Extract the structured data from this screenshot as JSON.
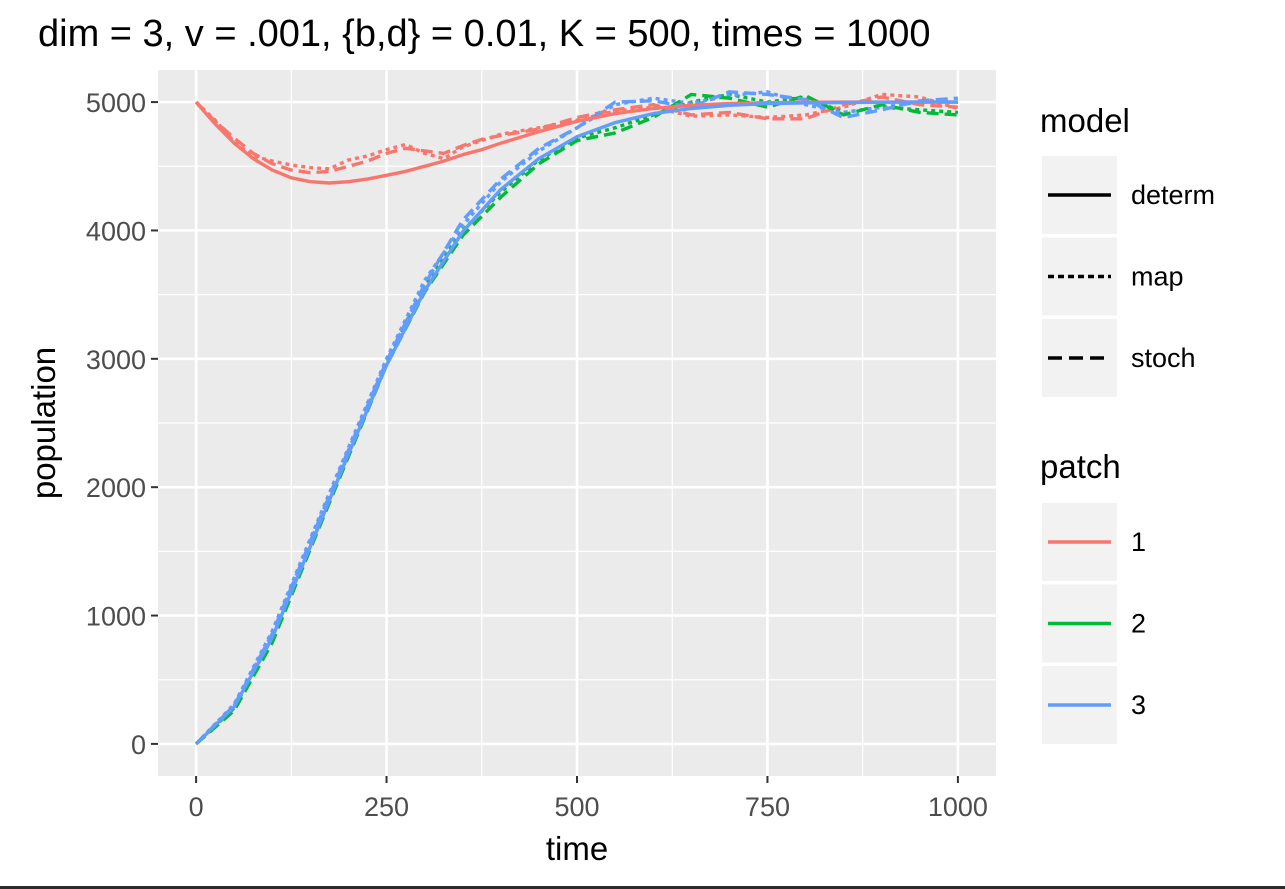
{
  "chart_data": {
    "type": "line",
    "title": "dim = 3, v = .001, {b,d} = 0.01, K = 500, times = 1000",
    "xlabel": "time",
    "ylabel": "population",
    "xlim": [
      -50,
      1050
    ],
    "ylim": [
      -250,
      5250
    ],
    "xticks": [
      0,
      250,
      500,
      750,
      1000
    ],
    "yticks": [
      0,
      1000,
      2000,
      3000,
      4000,
      5000
    ],
    "grid": true,
    "legend_position": "right",
    "legends": [
      {
        "title": "model",
        "entries": [
          {
            "label": "determ",
            "linetype": "solid"
          },
          {
            "label": "map",
            "linetype": "dotted"
          },
          {
            "label": "stoch",
            "linetype": "dashed"
          }
        ]
      },
      {
        "title": "patch",
        "entries": [
          {
            "label": "1",
            "color": "#F8766D"
          },
          {
            "label": "2",
            "color": "#00BA38"
          },
          {
            "label": "3",
            "color": "#619CFF"
          }
        ]
      }
    ],
    "series": [
      {
        "patch": "1",
        "model": "determ",
        "color": "#F8766D",
        "x": [
          0,
          25,
          50,
          75,
          100,
          125,
          150,
          175,
          200,
          225,
          250,
          275,
          300,
          325,
          350,
          375,
          400,
          450,
          500,
          550,
          600,
          650,
          700,
          750,
          800,
          850,
          900,
          950,
          1000
        ],
        "y": [
          5000,
          4830,
          4680,
          4560,
          4470,
          4410,
          4380,
          4370,
          4380,
          4400,
          4430,
          4460,
          4500,
          4540,
          4590,
          4630,
          4680,
          4770,
          4850,
          4910,
          4950,
          4975,
          4990,
          4995,
          4998,
          5000,
          5000,
          5000,
          5000
        ]
      },
      {
        "patch": "1",
        "model": "map",
        "color": "#F8766D",
        "x": [
          0,
          25,
          50,
          75,
          100,
          125,
          150,
          175,
          200,
          225,
          250,
          275,
          300,
          325,
          350,
          375,
          400,
          450,
          500,
          550,
          600,
          650,
          700,
          750,
          800,
          850,
          900,
          950,
          1000
        ],
        "y": [
          5000,
          4860,
          4690,
          4580,
          4540,
          4510,
          4490,
          4480,
          4550,
          4580,
          4630,
          4670,
          4600,
          4560,
          4650,
          4700,
          4750,
          4800,
          4860,
          4930,
          4960,
          4890,
          4900,
          4880,
          4900,
          4960,
          5060,
          5040,
          4950
        ]
      },
      {
        "patch": "1",
        "model": "stoch",
        "color": "#F8766D",
        "x": [
          0,
          25,
          50,
          75,
          100,
          125,
          150,
          175,
          200,
          225,
          250,
          275,
          300,
          325,
          350,
          375,
          400,
          450,
          500,
          550,
          600,
          650,
          700,
          750,
          800,
          850,
          900,
          950,
          1000
        ],
        "y": [
          5000,
          4850,
          4720,
          4600,
          4520,
          4470,
          4450,
          4460,
          4500,
          4540,
          4600,
          4640,
          4620,
          4600,
          4660,
          4710,
          4740,
          4790,
          4880,
          4940,
          4980,
          4900,
          4920,
          4870,
          4870,
          4980,
          5040,
          4980,
          4960
        ]
      },
      {
        "patch": "2",
        "model": "map",
        "color": "#00BA38",
        "x": [
          0,
          50,
          100,
          150,
          200,
          250,
          300,
          350,
          400,
          450,
          500,
          550,
          600,
          650,
          700,
          750,
          800,
          850,
          900,
          950,
          1000
        ],
        "y": [
          0,
          280,
          830,
          1540,
          2260,
          2970,
          3560,
          4000,
          4300,
          4550,
          4720,
          4800,
          4900,
          5000,
          5060,
          5000,
          5040,
          4920,
          4960,
          4940,
          4920
        ]
      },
      {
        "patch": "2",
        "model": "stoch",
        "color": "#00BA38",
        "x": [
          0,
          50,
          100,
          150,
          200,
          250,
          300,
          350,
          400,
          450,
          500,
          550,
          600,
          650,
          700,
          750,
          800,
          850,
          900,
          950,
          1000
        ],
        "y": [
          0,
          260,
          790,
          1520,
          2240,
          2950,
          3520,
          3960,
          4260,
          4520,
          4700,
          4760,
          4880,
          5060,
          5030,
          4960,
          5050,
          4900,
          4980,
          4920,
          4900
        ]
      },
      {
        "patch": "3",
        "model": "determ",
        "color": "#619CFF",
        "x": [
          0,
          50,
          100,
          150,
          200,
          250,
          300,
          350,
          400,
          450,
          500,
          550,
          600,
          650,
          700,
          750,
          800,
          850,
          900,
          950,
          1000
        ],
        "y": [
          0,
          290,
          830,
          1540,
          2260,
          2950,
          3530,
          3990,
          4320,
          4560,
          4730,
          4840,
          4910,
          4950,
          4975,
          4988,
          4994,
          4997,
          4999,
          5000,
          5000
        ]
      },
      {
        "patch": "3",
        "model": "map",
        "color": "#619CFF",
        "x": [
          0,
          50,
          100,
          150,
          200,
          250,
          300,
          350,
          400,
          450,
          500,
          550,
          600,
          650,
          700,
          750,
          800,
          850,
          900,
          950,
          1000
        ],
        "y": [
          0,
          310,
          880,
          1600,
          2310,
          3000,
          3610,
          4040,
          4380,
          4620,
          4800,
          4980,
          5030,
          4990,
          5050,
          5080,
          4980,
          4920,
          4960,
          5000,
          5000
        ]
      },
      {
        "patch": "3",
        "model": "stoch",
        "color": "#619CFF",
        "x": [
          0,
          50,
          100,
          150,
          200,
          250,
          300,
          350,
          400,
          450,
          500,
          550,
          600,
          650,
          700,
          750,
          800,
          850,
          900,
          950,
          1000
        ],
        "y": [
          0,
          300,
          860,
          1580,
          2290,
          2980,
          3580,
          4080,
          4400,
          4640,
          4800,
          5000,
          5010,
          4960,
          5080,
          5060,
          5020,
          4880,
          4940,
          5010,
          5030
        ]
      }
    ]
  }
}
